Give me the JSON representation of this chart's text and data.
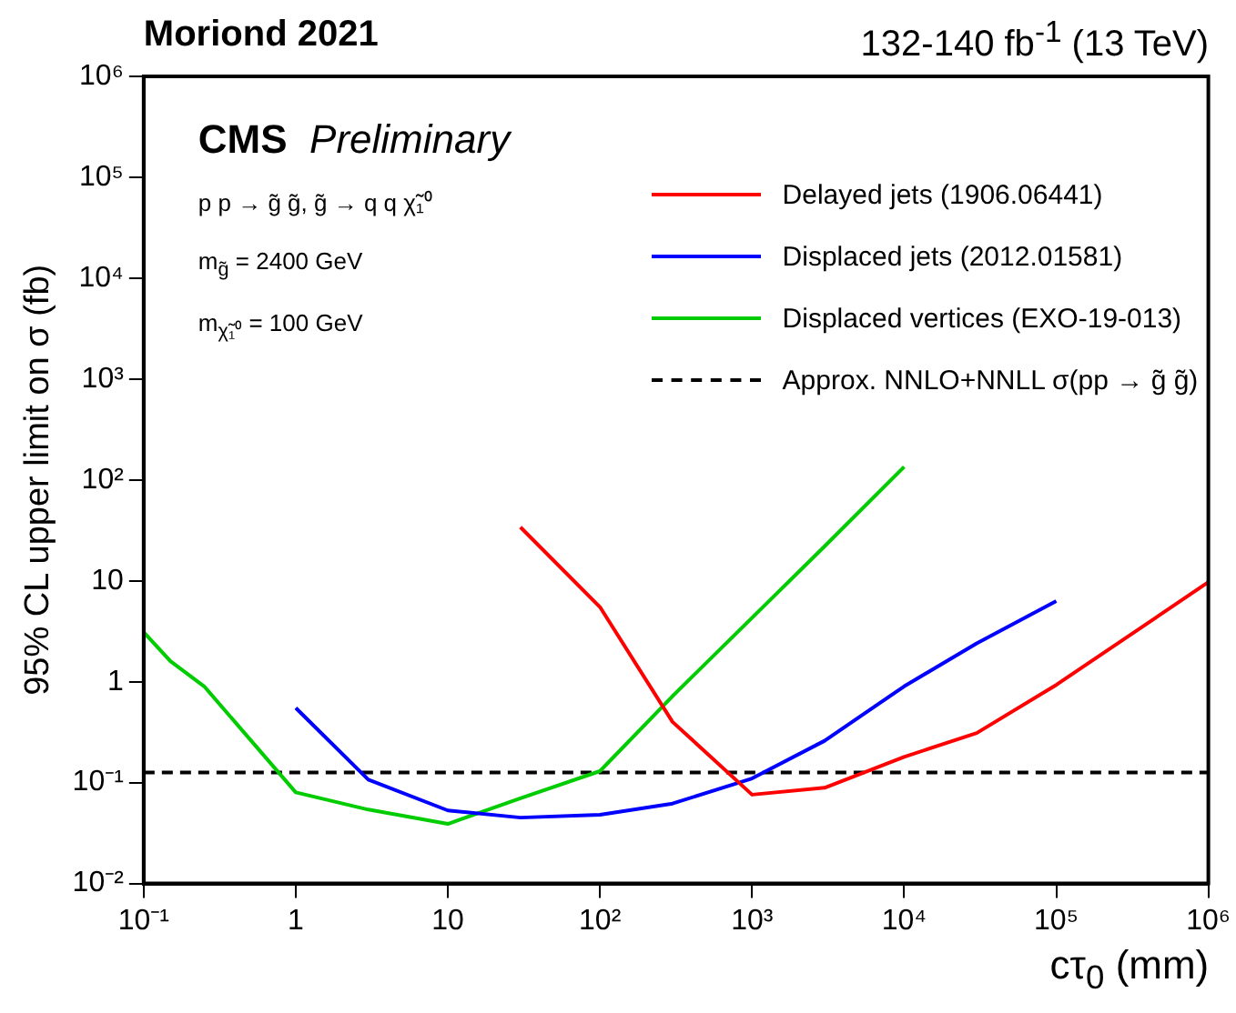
{
  "chart_data": {
    "type": "line",
    "title": "Moriond 2021",
    "subtitle": "132-140 fb$^{-1}$ (13 TeV)",
    "xlabel": "cτ$_{0}$ (mm)",
    "ylabel": "95% CL upper limit on σ (fb)",
    "annotations": [
      "CMS Preliminary",
      "p p → g̃ g̃, g̃ → q q χ̃₁⁰",
      "m$_{g̃}$ = 2400 GeV",
      "m$_{χ̃₁⁰}$ = 100 GeV"
    ],
    "log": "xy",
    "grid": false,
    "legend": "top right",
    "marker": "none",
    "line_style": "solid",
    "xlim": [
      0.1,
      1000000
    ],
    "ylim": [
      0.01,
      1000000
    ],
    "xticks": [
      {
        "value": 0.1,
        "label": "10⁻¹"
      },
      1,
      10,
      {
        "value": 100,
        "label": "10²"
      },
      {
        "value": 1000,
        "label": "10³"
      },
      {
        "value": 10000,
        "label": "10⁴"
      },
      {
        "value": 100000,
        "label": "10⁵"
      },
      {
        "value": 1000000,
        "label": "10⁶"
      }
    ],
    "yticks": [
      {
        "value": 0.01,
        "label": "10⁻²"
      },
      {
        "value": 0.1,
        "label": "10⁻¹"
      },
      1,
      10,
      {
        "value": 100,
        "label": "10²"
      },
      {
        "value": 1000,
        "label": "10³"
      },
      {
        "value": 10000,
        "label": "10⁴"
      },
      {
        "value": 100000,
        "label": "10⁵"
      },
      {
        "value": 1000000,
        "label": "10⁶"
      }
    ],
    "series": [
      {
        "name": "Delayed jets (1906.06441)",
        "color": "#ff0000",
        "x": [
          30,
          100,
          300,
          1000,
          3000,
          10000,
          30000,
          100000,
          1000000
        ],
        "values": [
          34,
          5.5,
          0.4,
          0.076,
          0.089,
          0.18,
          0.31,
          0.93,
          9.7
        ]
      },
      {
        "name": "Displaced jets (2012.01581)",
        "color": "#0000ff",
        "x": [
          1,
          3,
          10,
          30,
          100,
          300,
          1000,
          3000,
          10000,
          30000,
          100000
        ],
        "values": [
          0.55,
          0.107,
          0.053,
          0.045,
          0.048,
          0.062,
          0.11,
          0.26,
          0.9,
          2.4,
          6.3
        ]
      },
      {
        "name": "Displaced vertices (EXO-19-013)",
        "color": "#00cc00",
        "x": [
          0.1,
          0.15,
          0.25,
          1,
          3,
          10,
          30,
          100,
          300,
          1000,
          3000,
          10000
        ],
        "values": [
          3.1,
          1.6,
          0.9,
          0.08,
          0.054,
          0.039,
          0.07,
          0.13,
          0.72,
          4.3,
          22,
          135
        ]
      }
    ],
    "ref_lines": [
      {
        "axis": "y",
        "value": 0.126,
        "label": "Approx. NNLO+NNLL σ(pp → g̃ g̃)",
        "color": "#000000",
        "line_style": "dashed"
      }
    ]
  }
}
